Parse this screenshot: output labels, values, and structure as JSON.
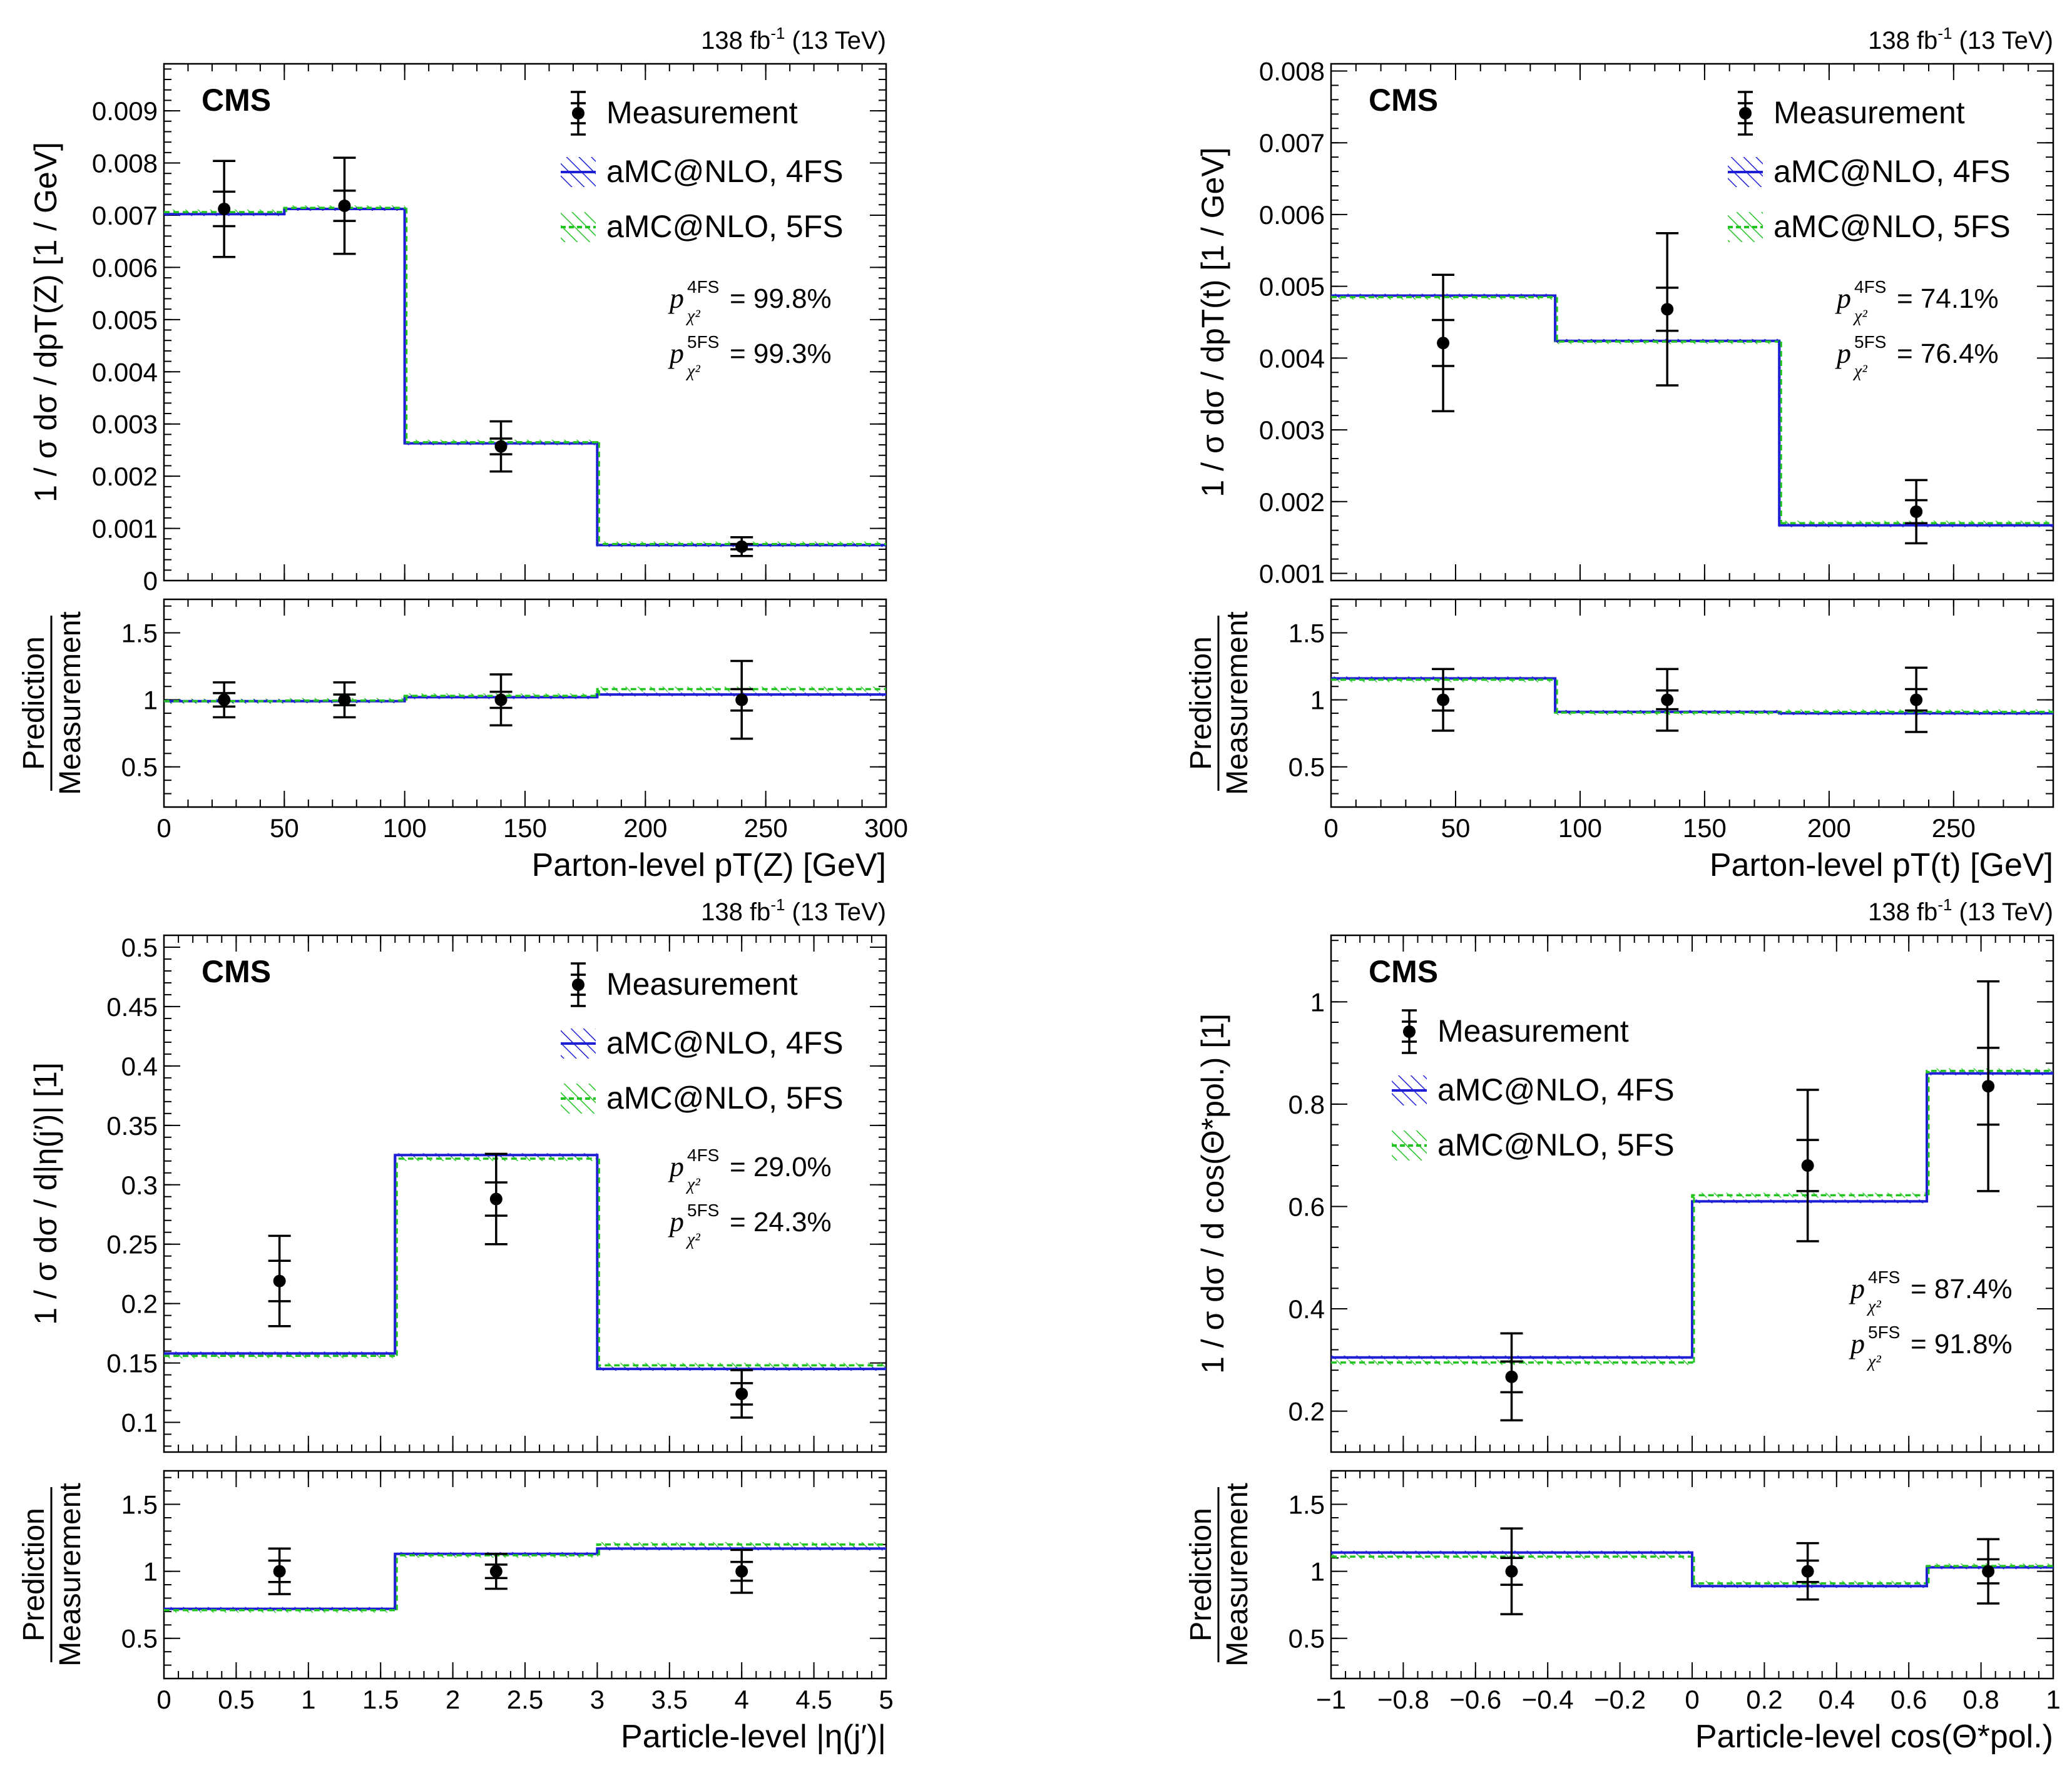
{
  "figure": {
    "experiment_label": "CMS",
    "lumi_label": "138 fb",
    "lumi_sup": "-1",
    "energy_label": "(13 TeV)",
    "legend": {
      "measurement": "Measurement",
      "fs4": "aMC@NLO, 4FS",
      "fs5": "aMC@NLO, 5FS"
    },
    "ratio_ylabel_top": "Prediction",
    "ratio_ylabel_bottom": "Measurement",
    "pval_4fs_sup": "4FS",
    "pval_5fs_sup": "5FS",
    "pval_sub": "χ²",
    "colors": {
      "fs4": "#1f1fd6",
      "fs5": "#22c422",
      "measurement": "#000000"
    }
  },
  "chart_data": [
    {
      "type": "line",
      "panel": "top-left",
      "xlabel": "Parton-level pT(Z)   [GeV]",
      "ylabel": "1 / σ   dσ / dpT(Z)   [1 / GeV]",
      "xlim": [
        0,
        300
      ],
      "ylim": [
        0,
        0.0099
      ],
      "yticks_labels": [
        "0",
        "0.001",
        "0.002",
        "0.003",
        "0.004",
        "0.005",
        "0.006",
        "0.007",
        "0.008",
        "0.009"
      ],
      "xticks_labels": [
        "0",
        "50",
        "100",
        "150",
        "200",
        "250",
        "300"
      ],
      "bin_edges": [
        0,
        50,
        100,
        180,
        300
      ],
      "pvalue_4fs": "= 99.8%",
      "pvalue_5fs": "= 99.3%",
      "legend_position": "top-right",
      "series": [
        {
          "name": "Measurement",
          "x": [
            25,
            75,
            140,
            240
          ],
          "values": [
            0.00712,
            0.00718,
            0.00257,
            0.00065
          ],
          "err_total": [
            0.00092,
            0.00092,
            0.00048,
            0.00018
          ],
          "err_stat": [
            0.00033,
            0.00029,
            0.00015,
            5e-05
          ]
        },
        {
          "name": "aMC@NLO, 4FS",
          "values": [
            0.00702,
            0.00712,
            0.00263,
            0.00068
          ]
        },
        {
          "name": "aMC@NLO, 5FS",
          "values": [
            0.00706,
            0.00714,
            0.00265,
            0.0007
          ]
        }
      ],
      "ratio": {
        "ylim": [
          0.2,
          1.75
        ],
        "yticks_labels": [
          "0.5",
          "1",
          "1.5"
        ],
        "measurement": {
          "x": [
            25,
            75,
            140,
            240
          ],
          "values": [
            1.0,
            1.0,
            1.0,
            1.0
          ],
          "err_total": [
            0.13,
            0.13,
            0.19,
            0.29
          ],
          "err_stat": [
            0.05,
            0.04,
            0.06,
            0.08
          ]
        },
        "fs4": [
          0.99,
          0.99,
          1.02,
          1.04
        ],
        "fs5": [
          0.99,
          0.995,
          1.03,
          1.08
        ]
      }
    },
    {
      "type": "line",
      "panel": "top-right",
      "xlabel": "Parton-level pT(t)   [GeV]",
      "ylabel": "1 / σ   dσ / dpT(t)   [1 / GeV]",
      "xlim": [
        0,
        290
      ],
      "ylim": [
        0.0009,
        0.0081
      ],
      "yticks_labels": [
        "0.001",
        "0.002",
        "0.003",
        "0.004",
        "0.005",
        "0.006",
        "0.007",
        "0.008"
      ],
      "xticks_labels": [
        "0",
        "50",
        "100",
        "150",
        "200",
        "250"
      ],
      "bin_edges": [
        0,
        90,
        180,
        290
      ],
      "pvalue_4fs": "= 74.1%",
      "pvalue_5fs": "= 76.4%",
      "legend_position": "top-right",
      "series": [
        {
          "name": "Measurement",
          "x": [
            45,
            135,
            235
          ],
          "values": [
            0.00421,
            0.00468,
            0.00186
          ],
          "err_total": [
            0.00095,
            0.00106,
            0.00044
          ],
          "err_stat": [
            0.00032,
            0.0003,
            0.00016
          ]
        },
        {
          "name": "aMC@NLO, 4FS",
          "values": [
            0.00487,
            0.00424,
            0.00167
          ]
        },
        {
          "name": "aMC@NLO, 5FS",
          "values": [
            0.00485,
            0.00423,
            0.0017
          ]
        }
      ],
      "ratio": {
        "ylim": [
          0.2,
          1.75
        ],
        "yticks_labels": [
          "0.5",
          "1",
          "1.5"
        ],
        "measurement": {
          "x": [
            45,
            135,
            235
          ],
          "values": [
            1.0,
            1.0,
            1.0
          ],
          "err_total": [
            0.23,
            0.23,
            0.24
          ],
          "err_stat": [
            0.08,
            0.07,
            0.08
          ]
        },
        "fs4": [
          1.16,
          0.91,
          0.9
        ],
        "fs5": [
          1.15,
          0.905,
          0.91
        ]
      }
    },
    {
      "type": "line",
      "panel": "bottom-left",
      "xlabel": "Particle-level |η(j′)|",
      "ylabel": "1 / σ   dσ / d|η(j′)|   [1]",
      "xlim": [
        0,
        5
      ],
      "ylim": [
        0.075,
        0.51
      ],
      "yticks_labels": [
        "0.1",
        "0.15",
        "0.2",
        "0.25",
        "0.3",
        "0.35",
        "0.4",
        "0.45",
        "0.5"
      ],
      "xticks_labels": [
        "0",
        "0.5",
        "1",
        "1.5",
        "2",
        "2.5",
        "3",
        "3.5",
        "4",
        "4.5",
        "5"
      ],
      "bin_edges": [
        0,
        1.6,
        3,
        5
      ],
      "pvalue_4fs": "= 29.0%",
      "pvalue_5fs": "= 24.3%",
      "legend_position": "top-right",
      "series": [
        {
          "name": "Measurement",
          "x": [
            0.8,
            2.3,
            4
          ],
          "values": [
            0.219,
            0.288,
            0.124
          ],
          "err_total": [
            0.038,
            0.038,
            0.02
          ],
          "err_stat": [
            0.017,
            0.014,
            0.009
          ]
        },
        {
          "name": "aMC@NLO, 4FS",
          "values": [
            0.158,
            0.325,
            0.145
          ]
        },
        {
          "name": "aMC@NLO, 5FS",
          "values": [
            0.156,
            0.322,
            0.148
          ]
        }
      ],
      "ratio": {
        "ylim": [
          0.2,
          1.75
        ],
        "yticks_labels": [
          "0.5",
          "1",
          "1.5"
        ],
        "measurement": {
          "x": [
            0.8,
            2.3,
            4
          ],
          "values": [
            1.0,
            1.0,
            1.0
          ],
          "err_total": [
            0.17,
            0.13,
            0.16
          ],
          "err_stat": [
            0.08,
            0.05,
            0.07
          ]
        },
        "fs4": [
          0.72,
          1.13,
          1.17
        ],
        "fs5": [
          0.71,
          1.12,
          1.2
        ]
      }
    },
    {
      "type": "line",
      "panel": "bottom-right",
      "xlabel": "Particle-level  cos(Θ*pol.)",
      "ylabel": "1 / σ   dσ / d cos(Θ*pol.)   [1]",
      "xlim": [
        -1,
        1
      ],
      "ylim": [
        0.12,
        1.13
      ],
      "yticks_labels": [
        "0.2",
        "0.4",
        "0.6",
        "0.8",
        "1"
      ],
      "xticks_labels": [
        "−1",
        "−0.8",
        "−0.6",
        "−0.4",
        "−0.2",
        "0",
        "0.2",
        "0.4",
        "0.6",
        "0.8",
        "1"
      ],
      "bin_edges": [
        -1,
        0,
        0.65,
        1
      ],
      "pvalue_4fs": "= 87.4%",
      "pvalue_5fs": "= 91.8%",
      "legend_position": "top-left",
      "series": [
        {
          "name": "Measurement",
          "x": [
            -0.5,
            0.32,
            0.82
          ],
          "values": [
            0.267,
            0.68,
            0.835
          ],
          "err_total": [
            0.085,
            0.148,
            0.205
          ],
          "err_stat": [
            0.03,
            0.05,
            0.075
          ]
        },
        {
          "name": "aMC@NLO, 4FS",
          "values": [
            0.305,
            0.61,
            0.86
          ]
        },
        {
          "name": "aMC@NLO, 5FS",
          "values": [
            0.295,
            0.622,
            0.865
          ]
        }
      ],
      "ratio": {
        "ylim": [
          0.2,
          1.75
        ],
        "yticks_labels": [
          "0.5",
          "1",
          "1.5"
        ],
        "measurement": {
          "x": [
            -0.5,
            0.32,
            0.82
          ],
          "values": [
            1.0,
            1.0,
            1.0
          ],
          "err_total": [
            0.32,
            0.21,
            0.24
          ],
          "err_stat": [
            0.1,
            0.08,
            0.09
          ]
        },
        "fs4": [
          1.14,
          0.89,
          1.03
        ],
        "fs5": [
          1.11,
          0.91,
          1.04
        ]
      }
    }
  ]
}
